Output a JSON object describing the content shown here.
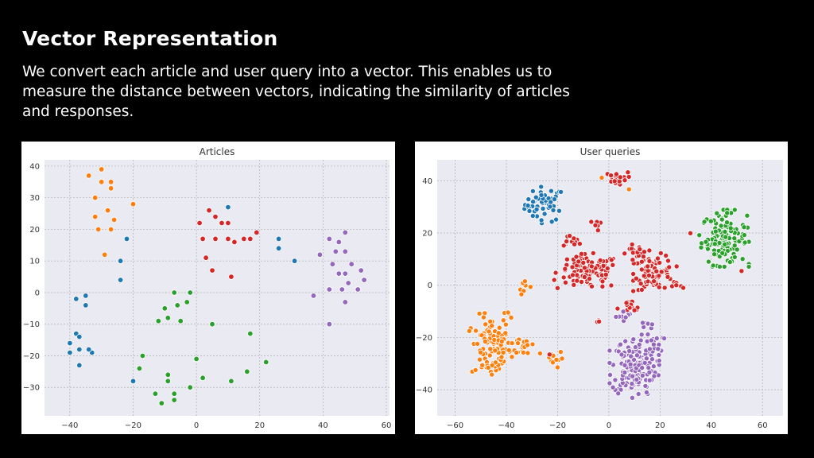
{
  "slide": {
    "title": "Vector Representation",
    "description": "We convert each article and user query into a vector. This enables us to measure the distance between vectors, indicating the similarity of articles and responses."
  },
  "colors": {
    "blue": "#1f77b4",
    "orange": "#ff7f0e",
    "green": "#2ca02c",
    "red": "#d62728",
    "purple": "#9467bd",
    "plot_bg": "#eaeaf2",
    "grid": "#b0b0b0"
  },
  "chart_data": [
    {
      "type": "scatter",
      "title": "Articles",
      "xlabel": "",
      "ylabel": "",
      "xlim": [
        -48,
        61
      ],
      "ylim": [
        -39,
        42
      ],
      "xticks": [
        -40,
        -20,
        0,
        20,
        40,
        60
      ],
      "yticks": [
        -30,
        -20,
        -10,
        0,
        10,
        20,
        30,
        40
      ],
      "grid": true,
      "series": [
        {
          "name": "blue",
          "color": "#1f77b4",
          "points": [
            [
              -22,
              17
            ],
            [
              -24,
              10
            ],
            [
              -24,
              4
            ],
            [
              -38,
              -2
            ],
            [
              -35,
              -1
            ],
            [
              -35,
              -4
            ],
            [
              -38,
              -13
            ],
            [
              -37,
              -14
            ],
            [
              -40,
              -16
            ],
            [
              -40,
              -19
            ],
            [
              -37,
              -18
            ],
            [
              -37,
              -23
            ],
            [
              -33,
              -19
            ],
            [
              -34,
              -18
            ],
            [
              -20,
              -28
            ],
            [
              26,
              17
            ],
            [
              26,
              14
            ],
            [
              31,
              10
            ],
            [
              10,
              27
            ]
          ]
        },
        {
          "name": "orange",
          "color": "#ff7f0e",
          "points": [
            [
              -30,
              39
            ],
            [
              -34,
              37
            ],
            [
              -27,
              35
            ],
            [
              -30,
              35
            ],
            [
              -27,
              33
            ],
            [
              -32,
              30
            ],
            [
              -28,
              26
            ],
            [
              -20,
              28
            ],
            [
              -26,
              23
            ],
            [
              -32,
              24
            ],
            [
              -31,
              20
            ],
            [
              -27,
              20
            ],
            [
              -29,
              12
            ]
          ]
        },
        {
          "name": "green",
          "color": "#2ca02c",
          "points": [
            [
              -7,
              0
            ],
            [
              -10,
              -5
            ],
            [
              -6,
              -4
            ],
            [
              -2,
              0
            ],
            [
              -3,
              -3
            ],
            [
              -9,
              -8
            ],
            [
              -12,
              -9
            ],
            [
              -5,
              -9
            ],
            [
              5,
              -10
            ],
            [
              17,
              -13
            ],
            [
              -17,
              -20
            ],
            [
              -18,
              -24
            ],
            [
              0,
              -21
            ],
            [
              22,
              -22
            ],
            [
              16,
              -25
            ],
            [
              -9,
              -26
            ],
            [
              -9,
              -28
            ],
            [
              -2,
              -30
            ],
            [
              -7,
              -32
            ],
            [
              -13,
              -32
            ],
            [
              -7,
              -34
            ],
            [
              -11,
              -35
            ],
            [
              2,
              -27
            ],
            [
              11,
              -28
            ]
          ]
        },
        {
          "name": "red",
          "color": "#d62728",
          "points": [
            [
              1,
              22
            ],
            [
              4,
              26
            ],
            [
              6,
              24
            ],
            [
              8,
              22
            ],
            [
              10,
              22
            ],
            [
              2,
              17
            ],
            [
              6,
              17
            ],
            [
              10,
              17
            ],
            [
              12,
              16
            ],
            [
              15,
              17
            ],
            [
              17,
              17
            ],
            [
              19,
              19
            ],
            [
              3,
              11
            ],
            [
              5,
              7
            ],
            [
              11,
              5
            ]
          ]
        },
        {
          "name": "purple",
          "color": "#9467bd",
          "points": [
            [
              42,
              17
            ],
            [
              45,
              16
            ],
            [
              47,
              19
            ],
            [
              39,
              12
            ],
            [
              44,
              13
            ],
            [
              47,
              13
            ],
            [
              43,
              9
            ],
            [
              49,
              9
            ],
            [
              45,
              6
            ],
            [
              47,
              6
            ],
            [
              52,
              7
            ],
            [
              53,
              4
            ],
            [
              48,
              3
            ],
            [
              42,
              1
            ],
            [
              46,
              1
            ],
            [
              51,
              1
            ],
            [
              37,
              -1
            ],
            [
              47,
              -3
            ],
            [
              42,
              -10
            ]
          ]
        }
      ]
    },
    {
      "type": "scatter",
      "title": "User queries",
      "xlabel": "",
      "ylabel": "",
      "xlim": [
        -67,
        68
      ],
      "ylim": [
        -50,
        48
      ],
      "xticks": [
        -60,
        -40,
        -20,
        0,
        20,
        40,
        60
      ],
      "yticks": [
        -40,
        -20,
        0,
        20,
        40
      ],
      "grid": true,
      "series": [
        {
          "name": "blue",
          "color": "#1f77b4",
          "cluster": {
            "cx": -25,
            "cy": 31,
            "rx": 7,
            "ry": 6,
            "count": 50
          }
        },
        {
          "name": "orange",
          "color": "#ff7f0e",
          "clusters": [
            {
              "cx": -46,
              "cy": -24,
              "rx": 7,
              "ry": 11,
              "count": 95
            },
            {
              "cx": -33,
              "cy": -23,
              "rx": 5,
              "ry": 4,
              "count": 20
            },
            {
              "cx": -22,
              "cy": -28,
              "rx": 4,
              "ry": 3,
              "count": 14
            },
            {
              "cx": -33,
              "cy": 0,
              "rx": 2,
              "ry": 3,
              "count": 7
            },
            {
              "cx": -40,
              "cy": -11,
              "rx": 2,
              "ry": 2,
              "count": 5
            },
            {
              "cx": -2,
              "cy": 41,
              "rx": 1,
              "ry": 1,
              "count": 1
            },
            {
              "cx": 8,
              "cy": 37,
              "rx": 1,
              "ry": 1,
              "count": 1
            }
          ]
        },
        {
          "name": "green",
          "color": "#2ca02c",
          "cluster": {
            "cx": 45,
            "cy": 18,
            "rx": 8,
            "ry": 9,
            "count": 130
          }
        },
        {
          "name": "red",
          "color": "#d62728",
          "clusters": [
            {
              "cx": -8,
              "cy": 5,
              "rx": 11,
              "ry": 6,
              "count": 120
            },
            {
              "cx": 18,
              "cy": 5,
              "rx": 7,
              "ry": 6,
              "count": 75
            },
            {
              "cx": 11,
              "cy": 12,
              "rx": 4,
              "ry": 3,
              "count": 25
            },
            {
              "cx": -15,
              "cy": 17,
              "rx": 4,
              "ry": 2,
              "count": 15
            },
            {
              "cx": 3,
              "cy": 41,
              "rx": 4,
              "ry": 2,
              "count": 22
            },
            {
              "cx": 8,
              "cy": -9,
              "rx": 4,
              "ry": 3,
              "count": 15
            },
            {
              "cx": 27,
              "cy": 0,
              "rx": 2,
              "ry": 2,
              "count": 6
            },
            {
              "cx": -5,
              "cy": 23,
              "rx": 2,
              "ry": 2,
              "count": 6
            },
            {
              "cx": -4,
              "cy": -14,
              "rx": 1,
              "ry": 1,
              "count": 4
            },
            {
              "cx": 32,
              "cy": 20,
              "rx": 1,
              "ry": 1,
              "count": 1
            },
            {
              "cx": -23,
              "cy": -27,
              "rx": 1,
              "ry": 1,
              "count": 1
            },
            {
              "cx": 52,
              "cy": 6,
              "rx": 1,
              "ry": 1,
              "count": 1
            }
          ]
        },
        {
          "name": "purple",
          "color": "#9467bd",
          "clusters": [
            {
              "cx": 10,
              "cy": -31,
              "rx": 8,
              "ry": 10,
              "count": 170
            },
            {
              "cx": 18,
              "cy": -22,
              "rx": 3,
              "ry": 3,
              "count": 15
            },
            {
              "cx": 6,
              "cy": -12,
              "rx": 3,
              "ry": 2,
              "count": 10
            },
            {
              "cx": 15,
              "cy": -15,
              "rx": 2,
              "ry": 2,
              "count": 6
            }
          ]
        }
      ]
    }
  ]
}
